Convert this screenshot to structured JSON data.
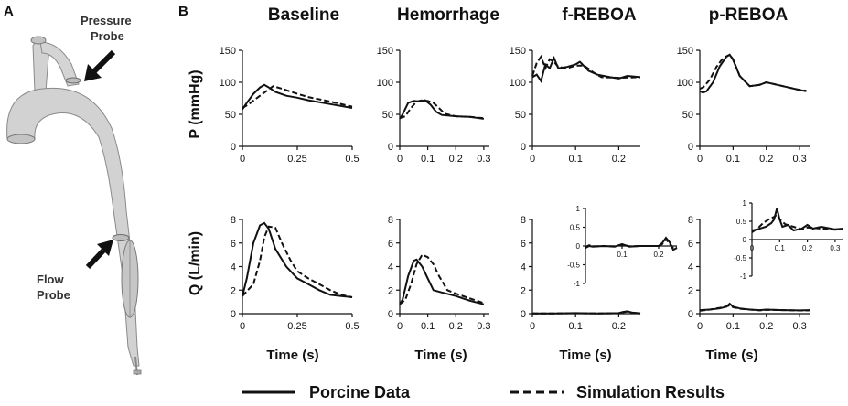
{
  "panel_labels": {
    "a": "A",
    "b": "B"
  },
  "model": {
    "pressure_probe_label": [
      "Pressure",
      "Probe"
    ],
    "flow_probe_label": [
      "Flow",
      "Probe"
    ],
    "colors": {
      "vessel_fill": "#d2d2d2",
      "vessel_stroke": "#8a8a8a",
      "arrow": "#111111"
    }
  },
  "row_labels": {
    "pressure": "P (mmHg)",
    "flow": "Q (L/min)"
  },
  "x_axis_label": "Time (s)",
  "legend": {
    "solid_label": "Porcine Data",
    "dashed_label": "Simulation Results"
  },
  "chart_data": [
    {
      "type": "line",
      "id": "p-baseline",
      "condition": "Baseline",
      "measure": "P",
      "title": "Baseline",
      "xlim": [
        0,
        0.5
      ],
      "ylim": [
        0,
        150
      ],
      "xticks": [
        0,
        0.25,
        0.5
      ],
      "xtick_labels": [
        "0",
        "0.25",
        "0.5"
      ],
      "yticks": [
        0,
        50,
        100,
        150
      ],
      "ytick_labels": [
        "0",
        "50",
        "100",
        "150"
      ],
      "series": [
        {
          "name": "Porcine Data",
          "style": "solid",
          "x": [
            0,
            0.02,
            0.05,
            0.08,
            0.1,
            0.12,
            0.15,
            0.2,
            0.25,
            0.3,
            0.4,
            0.5
          ],
          "y": [
            58,
            68,
            82,
            92,
            96,
            92,
            85,
            79,
            76,
            72,
            66,
            60
          ]
        },
        {
          "name": "Simulation Results",
          "style": "dashed",
          "x": [
            0,
            0.03,
            0.06,
            0.1,
            0.14,
            0.18,
            0.25,
            0.3,
            0.4,
            0.5
          ],
          "y": [
            60,
            66,
            74,
            84,
            94,
            90,
            82,
            77,
            70,
            62
          ]
        }
      ]
    },
    {
      "type": "line",
      "id": "p-hemorrhage",
      "condition": "Hemorrhage",
      "measure": "P",
      "title": "Hemorrhage",
      "xlim": [
        0,
        0.32
      ],
      "ylim": [
        0,
        150
      ],
      "xticks": [
        0,
        0.1,
        0.2,
        0.3
      ],
      "xtick_labels": [
        "0",
        "0.1",
        "0.2",
        "0.3"
      ],
      "yticks": [
        0,
        50,
        100,
        150
      ],
      "ytick_labels": [
        "0",
        "50",
        "100",
        "150"
      ],
      "series": [
        {
          "name": "Porcine Data",
          "style": "solid",
          "x": [
            0,
            0.01,
            0.03,
            0.05,
            0.07,
            0.09,
            0.11,
            0.13,
            0.15,
            0.2,
            0.25,
            0.3
          ],
          "y": [
            43,
            50,
            68,
            71,
            70,
            72,
            65,
            54,
            49,
            47,
            46,
            43
          ]
        },
        {
          "name": "Simulation Results",
          "style": "dashed",
          "x": [
            0,
            0.02,
            0.04,
            0.06,
            0.08,
            0.1,
            0.12,
            0.14,
            0.16,
            0.2,
            0.25,
            0.3
          ],
          "y": [
            44,
            47,
            60,
            70,
            72,
            71,
            68,
            60,
            51,
            47,
            46,
            44
          ]
        }
      ]
    },
    {
      "type": "line",
      "id": "p-freboa",
      "condition": "f-REBOA",
      "measure": "P",
      "title": "f-REBOA",
      "xlim": [
        0,
        0.25
      ],
      "ylim": [
        0,
        150
      ],
      "xticks": [
        0,
        0.1,
        0.2
      ],
      "xtick_labels": [
        "0",
        "0.1",
        "0.2"
      ],
      "yticks": [
        0,
        50,
        100,
        150
      ],
      "ytick_labels": [
        "0",
        "50",
        "100",
        "150"
      ],
      "series": [
        {
          "name": "Porcine Data",
          "style": "solid",
          "x": [
            0,
            0.01,
            0.02,
            0.03,
            0.04,
            0.05,
            0.06,
            0.08,
            0.1,
            0.11,
            0.13,
            0.15,
            0.18,
            0.2,
            0.22,
            0.25
          ],
          "y": [
            108,
            112,
            102,
            128,
            122,
            138,
            122,
            124,
            128,
            132,
            118,
            112,
            108,
            106,
            110,
            108
          ]
        },
        {
          "name": "Simulation Results",
          "style": "dashed",
          "x": [
            0,
            0.01,
            0.02,
            0.03,
            0.04,
            0.05,
            0.06,
            0.08,
            0.1,
            0.12,
            0.14,
            0.16,
            0.2,
            0.25
          ],
          "y": [
            110,
            130,
            140,
            122,
            136,
            132,
            124,
            122,
            126,
            126,
            116,
            108,
            107,
            108
          ]
        }
      ]
    },
    {
      "type": "line",
      "id": "p-preboa",
      "condition": "p-REBOA",
      "measure": "P",
      "title": "p-REBOA",
      "xlim": [
        0,
        0.33
      ],
      "ylim": [
        0,
        150
      ],
      "xticks": [
        0,
        0.1,
        0.2,
        0.3
      ],
      "xtick_labels": [
        "0",
        "0.1",
        "0.2",
        "0.3"
      ],
      "yticks": [
        0,
        50,
        100,
        150
      ],
      "ytick_labels": [
        "0",
        "50",
        "100",
        "150"
      ],
      "series": [
        {
          "name": "Porcine Data",
          "style": "solid",
          "x": [
            0,
            0.01,
            0.02,
            0.04,
            0.06,
            0.08,
            0.09,
            0.1,
            0.12,
            0.15,
            0.18,
            0.2,
            0.25,
            0.3,
            0.32
          ],
          "y": [
            86,
            84,
            86,
            100,
            125,
            140,
            143,
            135,
            110,
            94,
            96,
            100,
            94,
            88,
            86
          ]
        },
        {
          "name": "Simulation Results",
          "style": "dashed",
          "x": [
            0,
            0.01,
            0.03,
            0.05,
            0.07,
            0.09,
            0.1,
            0.12,
            0.15,
            0.18,
            0.2,
            0.25,
            0.3,
            0.32
          ],
          "y": [
            90,
            92,
            104,
            124,
            138,
            143,
            136,
            110,
            94,
            96,
            100,
            94,
            88,
            87
          ]
        }
      ]
    },
    {
      "type": "line",
      "id": "q-baseline",
      "condition": "Baseline",
      "measure": "Q",
      "title": "",
      "xlim": [
        0,
        0.5
      ],
      "ylim": [
        0,
        8
      ],
      "xticks": [
        0,
        0.25,
        0.5
      ],
      "xtick_labels": [
        "0",
        "0.25",
        "0.5"
      ],
      "yticks": [
        0,
        2,
        4,
        6,
        8
      ],
      "ytick_labels": [
        "0",
        "2",
        "4",
        "6",
        "8"
      ],
      "series": [
        {
          "name": "Porcine Data",
          "style": "solid",
          "x": [
            0,
            0.02,
            0.05,
            0.08,
            0.1,
            0.12,
            0.15,
            0.2,
            0.25,
            0.3,
            0.35,
            0.4,
            0.45,
            0.5
          ],
          "y": [
            1.5,
            3,
            6,
            7.5,
            7.7,
            7.2,
            5.5,
            4,
            3,
            2.5,
            2,
            1.6,
            1.5,
            1.4
          ]
        },
        {
          "name": "Simulation Results",
          "style": "dashed",
          "x": [
            0,
            0.05,
            0.08,
            0.1,
            0.12,
            0.15,
            0.18,
            0.22,
            0.25,
            0.3,
            0.35,
            0.4,
            0.45,
            0.5
          ],
          "y": [
            1.5,
            2.5,
            4.5,
            6.5,
            7.4,
            7.3,
            6,
            4.5,
            3.6,
            3,
            2.5,
            2,
            1.6,
            1.4
          ]
        }
      ]
    },
    {
      "type": "line",
      "id": "q-hemorrhage",
      "condition": "Hemorrhage",
      "measure": "Q",
      "title": "",
      "xlim": [
        0,
        0.32
      ],
      "ylim": [
        0,
        8
      ],
      "xticks": [
        0,
        0.1,
        0.2,
        0.3
      ],
      "xtick_labels": [
        "0",
        "0.1",
        "0.2",
        "0.3"
      ],
      "yticks": [
        0,
        2,
        4,
        6,
        8
      ],
      "ytick_labels": [
        "0",
        "2",
        "4",
        "6",
        "8"
      ],
      "series": [
        {
          "name": "Porcine Data",
          "style": "solid",
          "x": [
            0,
            0.01,
            0.03,
            0.05,
            0.06,
            0.08,
            0.1,
            0.12,
            0.15,
            0.2,
            0.25,
            0.3
          ],
          "y": [
            0.8,
            1.2,
            3.2,
            4.5,
            4.6,
            4,
            3,
            2,
            1.8,
            1.5,
            1.1,
            0.8
          ]
        },
        {
          "name": "Simulation Results",
          "style": "dashed",
          "x": [
            0,
            0.02,
            0.04,
            0.06,
            0.08,
            0.1,
            0.12,
            0.14,
            0.17,
            0.2,
            0.25,
            0.3
          ],
          "y": [
            0.8,
            1.2,
            2.5,
            4.2,
            5,
            4.8,
            4.2,
            3.2,
            2,
            1.7,
            1.3,
            0.9
          ]
        }
      ]
    },
    {
      "type": "line",
      "id": "q-freboa",
      "condition": "f-REBOA",
      "measure": "Q",
      "title": "",
      "xlim": [
        0,
        0.25
      ],
      "ylim": [
        0,
        8
      ],
      "xticks": [
        0,
        0.1,
        0.2
      ],
      "xtick_labels": [
        "0",
        "0.1",
        "0.2"
      ],
      "yticks": [
        0,
        2,
        4,
        6,
        8
      ],
      "ytick_labels": [
        "0",
        "2",
        "4",
        "6",
        "8"
      ],
      "series": [
        {
          "name": "Porcine Data",
          "style": "solid",
          "x": [
            0,
            0.05,
            0.1,
            0.15,
            0.2,
            0.21,
            0.22,
            0.23,
            0.25
          ],
          "y": [
            0.02,
            0.02,
            0.05,
            0.02,
            0.05,
            0.15,
            0.2,
            0.1,
            0.03
          ]
        },
        {
          "name": "Simulation Results",
          "style": "dashed",
          "x": [
            0,
            0.05,
            0.1,
            0.15,
            0.2,
            0.21,
            0.22,
            0.23,
            0.25
          ],
          "y": [
            0.02,
            0.02,
            0.04,
            0.02,
            0.04,
            0.12,
            0.18,
            0.08,
            0.02
          ]
        }
      ],
      "inset": {
        "xlim": [
          0,
          0.25
        ],
        "ylim": [
          -1,
          1
        ],
        "xticks": [
          0.1,
          0.2
        ],
        "xtick_labels": [
          "0.1",
          "0.2"
        ],
        "yticks": [
          -1,
          -0.5,
          0,
          0.5,
          1
        ],
        "ytick_labels": [
          "-1",
          "-0.5",
          "0",
          "0.5",
          "1"
        ],
        "series": [
          {
            "name": "Porcine Data",
            "style": "solid",
            "x": [
              0,
              0.01,
              0.02,
              0.05,
              0.08,
              0.1,
              0.12,
              0.15,
              0.2,
              0.21,
              0.22,
              0.23,
              0.24,
              0.25
            ],
            "y": [
              -0.05,
              0,
              -0.02,
              0,
              -0.02,
              0.05,
              -0.02,
              0,
              0,
              0.08,
              0.22,
              0.1,
              -0.1,
              -0.05
            ]
          },
          {
            "name": "Simulation Results",
            "style": "dashed",
            "x": [
              0,
              0.01,
              0.02,
              0.05,
              0.08,
              0.1,
              0.12,
              0.15,
              0.2,
              0.21,
              0.22,
              0.23,
              0.24,
              0.25
            ],
            "y": [
              -0.03,
              0.02,
              -0.01,
              0,
              -0.01,
              0.04,
              -0.01,
              0,
              0,
              0.05,
              0.18,
              0.06,
              -0.06,
              -0.04
            ]
          }
        ]
      }
    },
    {
      "type": "line",
      "id": "q-preboa",
      "condition": "p-REBOA",
      "measure": "Q",
      "title": "",
      "xlim": [
        0,
        0.33
      ],
      "ylim": [
        0,
        8
      ],
      "xticks": [
        0,
        0.1,
        0.2,
        0.3
      ],
      "xtick_labels": [
        "0",
        "0.1",
        "0.2",
        "0.3"
      ],
      "yticks": [
        0,
        2,
        4,
        6,
        8
      ],
      "ytick_labels": [
        "0",
        "2",
        "4",
        "6",
        "8"
      ],
      "series": [
        {
          "name": "Porcine Data",
          "style": "solid",
          "x": [
            0,
            0.03,
            0.06,
            0.08,
            0.09,
            0.1,
            0.12,
            0.15,
            0.18,
            0.2,
            0.25,
            0.3,
            0.33
          ],
          "y": [
            0.3,
            0.35,
            0.45,
            0.6,
            0.85,
            0.6,
            0.45,
            0.35,
            0.3,
            0.35,
            0.3,
            0.28,
            0.3
          ]
        },
        {
          "name": "Simulation Results",
          "style": "dashed",
          "x": [
            0,
            0.03,
            0.06,
            0.08,
            0.09,
            0.1,
            0.12,
            0.15,
            0.18,
            0.2,
            0.25,
            0.3,
            0.33
          ],
          "y": [
            0.25,
            0.35,
            0.5,
            0.62,
            0.7,
            0.55,
            0.42,
            0.35,
            0.28,
            0.33,
            0.3,
            0.27,
            0.28
          ]
        }
      ],
      "inset": {
        "xlim": [
          0,
          0.33
        ],
        "ylim": [
          -1,
          1
        ],
        "xticks": [
          0,
          0.1,
          0.2,
          0.3
        ],
        "xtick_labels": [
          "0",
          "0.1",
          "0.2",
          "0.3"
        ],
        "yticks": [
          -1,
          -0.5,
          0,
          0.5,
          1
        ],
        "ytick_labels": [
          "-1",
          "-0.5",
          "0",
          "0.5",
          "1"
        ],
        "series": [
          {
            "name": "Porcine Data",
            "style": "solid",
            "x": [
              0,
              0.02,
              0.05,
              0.07,
              0.08,
              0.09,
              0.1,
              0.11,
              0.13,
              0.15,
              0.18,
              0.2,
              0.22,
              0.25,
              0.3,
              0.33
            ],
            "y": [
              0.25,
              0.28,
              0.35,
              0.45,
              0.55,
              0.85,
              0.55,
              0.35,
              0.4,
              0.25,
              0.3,
              0.4,
              0.3,
              0.35,
              0.28,
              0.3
            ]
          },
          {
            "name": "Simulation Results",
            "style": "dashed",
            "x": [
              0,
              0.02,
              0.04,
              0.06,
              0.08,
              0.09,
              0.1,
              0.12,
              0.15,
              0.18,
              0.2,
              0.25,
              0.3,
              0.33
            ],
            "y": [
              0.2,
              0.3,
              0.45,
              0.55,
              0.62,
              0.68,
              0.55,
              0.42,
              0.35,
              0.28,
              0.33,
              0.3,
              0.27,
              0.28
            ]
          }
        ]
      }
    }
  ]
}
